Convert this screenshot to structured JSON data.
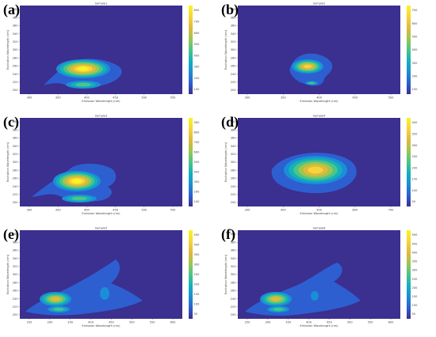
{
  "chart_data": [
    {
      "panel": "(a)",
      "title": "Sample1",
      "type": "heatmap",
      "xlabel": "Emission Wavelength (nm)",
      "ylabel": "Excitation Wavelength (nm)",
      "xticks": [
        "300",
        "350",
        "400",
        "450",
        "500",
        "550"
      ],
      "yticks": [
        "200",
        "220",
        "240",
        "260",
        "280",
        "300",
        "320",
        "340",
        "360",
        "380",
        "400"
      ],
      "cbar_ticks": [
        "100",
        "200",
        "300",
        "400",
        "500",
        "600",
        "700",
        "800"
      ]
    },
    {
      "panel": "(b)",
      "title": "Sample2",
      "type": "heatmap",
      "xlabel": "Emission Wavelength (nm)",
      "ylabel": "Excitation Wavelength (nm)",
      "xticks": [
        "300",
        "350",
        "400",
        "450",
        "500"
      ],
      "yticks": [
        "200",
        "220",
        "240",
        "260",
        "280",
        "300",
        "320",
        "340",
        "360",
        "380",
        "400"
      ],
      "cbar_ticks": [
        "100",
        "200",
        "300",
        "400",
        "500",
        "600",
        "700"
      ]
    },
    {
      "panel": "(c)",
      "title": "Sample3",
      "type": "heatmap",
      "xlabel": "Emission Wavelength (nm)",
      "ylabel": "Excitation Wavelength (nm)",
      "xticks": [
        "300",
        "350",
        "400",
        "450",
        "500",
        "550"
      ],
      "yticks": [
        "200",
        "220",
        "240",
        "260",
        "280",
        "300",
        "320",
        "340",
        "360",
        "380",
        "400"
      ],
      "cbar_ticks": [
        "100",
        "200",
        "300",
        "400",
        "500",
        "600",
        "700",
        "800",
        "900"
      ]
    },
    {
      "panel": "(d)",
      "title": "Sample4",
      "type": "heatmap",
      "xlabel": "Emission Wavelength (nm)",
      "ylabel": "Excitation Wavelength (nm)",
      "xticks": [
        "300",
        "400",
        "500",
        "600",
        "700"
      ],
      "yticks": [
        "200",
        "220",
        "240",
        "260",
        "280",
        "300",
        "320",
        "340",
        "360",
        "380",
        "400"
      ],
      "cbar_ticks": [
        "50",
        "100",
        "150",
        "200",
        "250",
        "300",
        "350",
        "400"
      ]
    },
    {
      "panel": "(e)",
      "title": "Sample5",
      "type": "heatmap",
      "xlabel": "Emission Wavelength (nm)",
      "ylabel": "Excitation Wavelength (nm)",
      "xticks": [
        "250",
        "300",
        "350",
        "400",
        "450",
        "500",
        "550",
        "600"
      ],
      "yticks": [
        "200",
        "220",
        "240",
        "260",
        "280",
        "300",
        "320",
        "340",
        "360",
        "380",
        "400"
      ],
      "cbar_ticks": [
        "50",
        "100",
        "150",
        "200",
        "250",
        "300",
        "350",
        "400",
        "450"
      ]
    },
    {
      "panel": "(f)",
      "title": "Sample6",
      "type": "heatmap",
      "xlabel": "Emission Wavelength (nm)",
      "ylabel": "Excitation Wavelength (nm)",
      "xticks": [
        "250",
        "300",
        "350",
        "400",
        "450",
        "500",
        "550",
        "600"
      ],
      "yticks": [
        "200",
        "220",
        "240",
        "260",
        "280",
        "300",
        "320",
        "340",
        "360",
        "380",
        "400"
      ],
      "cbar_ticks": [
        "50",
        "100",
        "150",
        "200",
        "250",
        "300",
        "350",
        "400",
        "450",
        "500"
      ]
    }
  ],
  "colors": {
    "background": "#3b2f8f",
    "colormap": [
      "#3b2f8f",
      "#2d5fd0",
      "#1b8ed8",
      "#13b1b8",
      "#4cc48a",
      "#9dc64f",
      "#e0b93c",
      "#f6d53a",
      "#f9f51f"
    ]
  }
}
